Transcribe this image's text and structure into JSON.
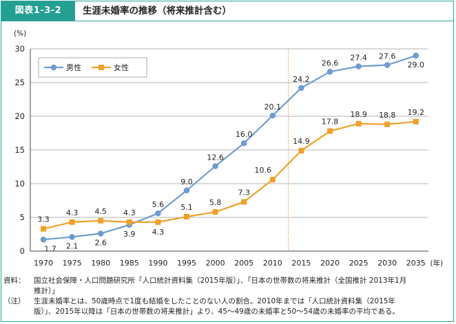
{
  "figure": {
    "badge": "図表1-3-2",
    "title": "生涯未婚率の推移（将来推計含む）"
  },
  "chart_data": {
    "type": "line",
    "y_unit_label": "(%)",
    "x_unit_label": "(年)",
    "ylim": [
      0,
      30
    ],
    "y_ticks": [
      0,
      5,
      10,
      15,
      20,
      25,
      30
    ],
    "x": [
      1970,
      1975,
      1980,
      1985,
      1990,
      1995,
      2000,
      2005,
      2010,
      2015,
      2020,
      2025,
      2030,
      2035
    ],
    "x_tick_labels": [
      "1970",
      "1975",
      "1980",
      "1985",
      "1990",
      "1995",
      "2000",
      "2005",
      "2010",
      "2015",
      "2020",
      "2025",
      "2030",
      "2035"
    ],
    "grid": "horizontal",
    "projection_divider_after": 2010,
    "legend_position": "top-left",
    "series": [
      {
        "name": "男性",
        "color": "#6f9ccf",
        "marker": "circle",
        "values": [
          1.7,
          2.1,
          2.6,
          3.9,
          5.6,
          9.0,
          12.6,
          16.0,
          20.1,
          24.2,
          26.6,
          27.4,
          27.6,
          29.0
        ],
        "labels": [
          "1.7",
          "2.1",
          "2.6",
          "3.9",
          "5.6",
          "9.0",
          "12.6",
          "16.0",
          "20.1",
          "24.2",
          "26.6",
          "27.4",
          "27.6",
          "29.0"
        ]
      },
      {
        "name": "女性",
        "color": "#f0a02a",
        "marker": "square",
        "values": [
          3.3,
          4.3,
          4.5,
          4.3,
          4.3,
          5.1,
          5.8,
          7.3,
          10.6,
          14.9,
          17.8,
          18.9,
          18.8,
          19.2
        ],
        "labels": [
          "3.3",
          "4.3",
          "4.5",
          "4.3",
          "4.3",
          "5.1",
          "5.8",
          "7.3",
          "10.6",
          "14.9",
          "17.8",
          "18.9",
          "18.8",
          "19.2"
        ]
      }
    ]
  },
  "notes": {
    "source_label": "資料：",
    "source_line1": "国立社会保障・人口問題研究所「人口統計資料集（2015年版）」、「日本の世帯数の将来推計（全国推計 2013年1月",
    "source_line2": "推計）」",
    "note_label": "（注）",
    "note_line1": "生涯未婚率とは、50歳時点で1度も結婚をしたことのない人の割合。2010年までは「人口統計資料集（2015年",
    "note_line2": "版）」、2015年以降は「日本の世帯数の将来推計」より、45〜49歳の未婚率と50〜54歳の未婚率の平均である。"
  }
}
